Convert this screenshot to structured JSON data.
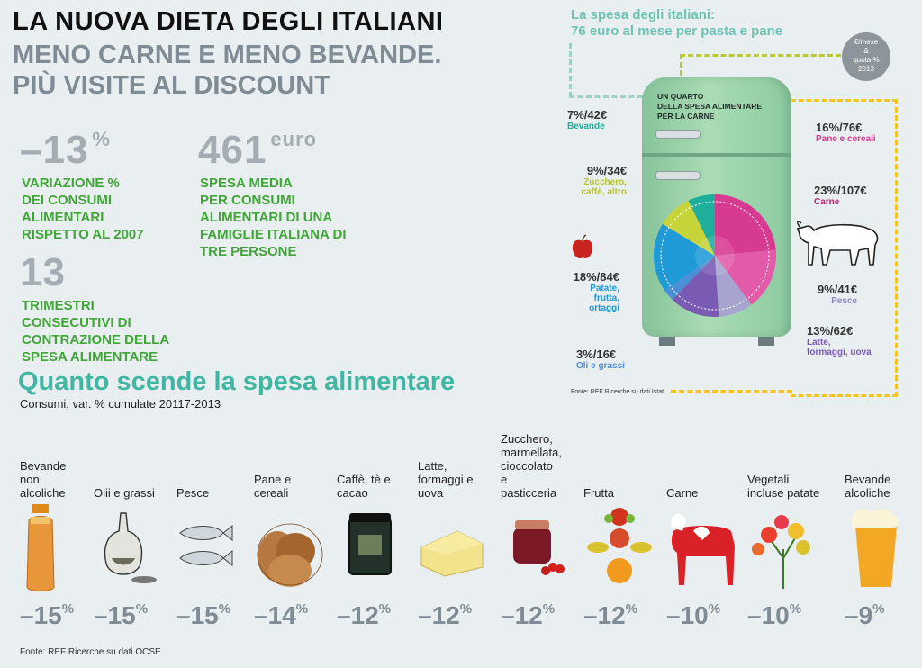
{
  "header": {
    "title": "LA NUOVA DIETA DEGLI ITALIANI",
    "subtitle_line1": "MENO CARNE E MENO BEVANDE.",
    "subtitle_line2": "PIÙ VISITE AL DISCOUNT"
  },
  "stats": {
    "variation": {
      "value": "–13",
      "unit": "%",
      "caption": [
        "VARIAZIONE %",
        "DEI CONSUMI",
        "ALIMENTARI",
        "RISPETTO AL 2007"
      ]
    },
    "spending": {
      "value": "461",
      "unit": "euro",
      "caption": [
        "SPESA MEDIA",
        "PER CONSUMI",
        "ALIMENTARI DI UNA",
        "FAMIGLIE ITALIANA DI",
        "TRE PERSONE"
      ]
    },
    "quarters": {
      "value": "13",
      "caption": [
        "TRIMESTRI",
        "CONSECUTIVI DI",
        "CONTRAZIONE DELLA",
        "SPESA ALIMENTARE"
      ]
    }
  },
  "fridge": {
    "heading_line1": "La spesa degli italiani:",
    "heading_line2": "76 euro al mese per pasta e pane",
    "legend_line1": "€/mese",
    "legend_line2": "&",
    "legend_line3": "quota %",
    "legend_line4": "2013",
    "door_text": [
      "UN QUARTO",
      "DELLA SPESA ALIMENTARE",
      "PER LA CARNE"
    ],
    "source": "Fonte: REF Ricerche su dati Istat"
  },
  "section": {
    "title": "Quanto scende la spesa alimentare",
    "subtitle": "Consumi, var. % cumulate 20117-2013"
  },
  "footer": {
    "source": "Fonte: REF Ricerche su dati OCSE"
  },
  "chart_data": [
    {
      "type": "pie",
      "title": "La spesa degli italiani: 76 euro al mese per pasta e pane",
      "slices": [
        {
          "label": "Carne",
          "share_pct": 23,
          "euro": 107,
          "share_text": "23%",
          "euro_text": "107€",
          "color": "#d63a91"
        },
        {
          "label": "Pane e cereali",
          "share_pct": 16,
          "euro": 76,
          "share_text": "16%",
          "euro_text": "76€",
          "color": "#e35aa8"
        },
        {
          "label": "Pesce",
          "share_pct": 9,
          "euro": 41,
          "share_text": "9%",
          "euro_text": "41€",
          "color": "#a7a4cf"
        },
        {
          "label": "Latte, formaggi, uova",
          "share_pct": 13,
          "euro": 62,
          "share_text": "13%",
          "euro_text": "62€",
          "color": "#7a5bb4"
        },
        {
          "label": "Oli e grassi",
          "share_pct": 3,
          "euro": 16,
          "share_text": "3%",
          "euro_text": "16€",
          "color": "#4d8fd6"
        },
        {
          "label": "Patate, frutta, ortaggi",
          "share_pct": 18,
          "euro": 84,
          "share_text": "18%",
          "euro_text": "84€",
          "color": "#1f9ad6"
        },
        {
          "label": "Zucchero, caffè, altro",
          "share_pct": 9,
          "euro": 34,
          "share_text": "9%",
          "euro_text": "34€",
          "color": "#c6d43a"
        },
        {
          "label": "Bevande",
          "share_pct": 7,
          "euro": 42,
          "share_text": "7%",
          "euro_text": "42€",
          "color": "#1fae9b"
        }
      ]
    },
    {
      "type": "table",
      "title": "Quanto scende la spesa alimentare",
      "subtitle": "Consumi, var. % cumulate 20117-2013",
      "categories": [
        "Bevande non alcoliche",
        "Olii e grassi",
        "Pesce",
        "Pane e cereali",
        "Caffè, tè e cacao",
        "Latte, formaggi e uova",
        "Zucchero, marmellata, cioccolato e pasticceria",
        "Frutta",
        "Carne",
        "Vegetali incluse patate",
        "Bevande alcoliche"
      ],
      "values": [
        -15,
        -15,
        -15,
        -14,
        -12,
        -12,
        -12,
        -12,
        -10,
        -10,
        -9
      ],
      "items": [
        {
          "label_lines": [
            "Bevande",
            "non",
            "alcoliche"
          ],
          "value_text": "–15"
        },
        {
          "label_lines": [
            "Olii e grassi"
          ],
          "value_text": "–15"
        },
        {
          "label_lines": [
            "Pesce"
          ],
          "value_text": "–15"
        },
        {
          "label_lines": [
            "Pane e",
            "cereali"
          ],
          "value_text": "–14"
        },
        {
          "label_lines": [
            "Caffè, tè e",
            "cacao"
          ],
          "value_text": "–12"
        },
        {
          "label_lines": [
            "Latte,",
            "formaggi e",
            "uova"
          ],
          "value_text": "–12"
        },
        {
          "label_lines": [
            "Zucchero,",
            "marmellata,",
            "cioccolato",
            "e",
            "pasticceria"
          ],
          "value_text": "–12"
        },
        {
          "label_lines": [
            "Frutta"
          ],
          "value_text": "–12"
        },
        {
          "label_lines": [
            "Carne"
          ],
          "value_text": "–10"
        },
        {
          "label_lines": [
            "Vegetali",
            "incluse patate"
          ],
          "value_text": "–10"
        },
        {
          "label_lines": [
            "Bevande",
            "alcoliche"
          ],
          "value_text": "–9"
        }
      ],
      "unit": "%"
    }
  ],
  "icons": [
    "juice-bottle-icon",
    "oil-cruet-icon",
    "fish-icon",
    "bread-icon",
    "tea-tin-icon",
    "cheese-icon",
    "jam-jar-icon",
    "fruit-figure-icon",
    "cow-icon",
    "vegetable-bouquet-icon",
    "beer-glass-icon",
    "apple-icon",
    "ox-icon"
  ],
  "colors": {
    "green": "#3fa637",
    "teal": "#41b7a3",
    "grey": "#7f8c95",
    "fridge": "#9fd3a8"
  }
}
